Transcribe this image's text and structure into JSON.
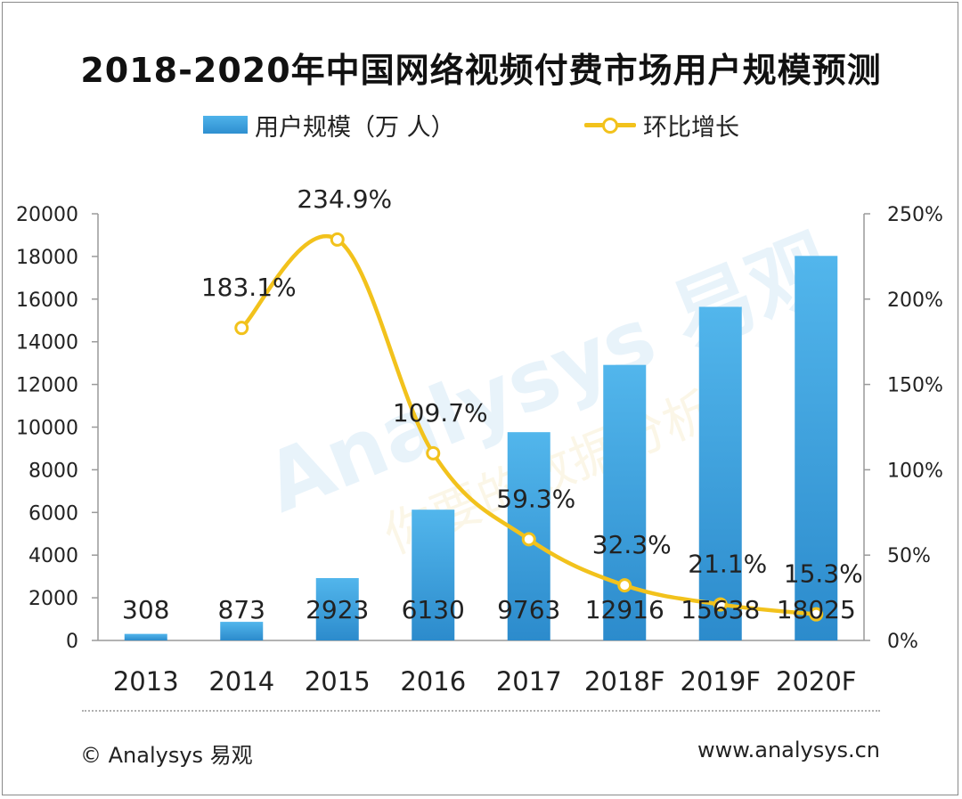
{
  "chart_data": {
    "type": "bar",
    "title": "2018-2020年中国网络视频付费市场用户规模预测",
    "categories": [
      "2013",
      "2014",
      "2015",
      "2016",
      "2017",
      "2018F",
      "2019F",
      "2020F"
    ],
    "series": [
      {
        "name": "用户规模（万 人）",
        "type": "bar",
        "axis": "left",
        "values": [
          308,
          873,
          2923,
          6130,
          9763,
          12916,
          15638,
          18025
        ],
        "labels": [
          "308",
          "873",
          "2923",
          "6130",
          "9763",
          "12916",
          "15638",
          "18025"
        ]
      },
      {
        "name": "环比增长",
        "type": "line",
        "axis": "right",
        "values": [
          null,
          183.1,
          234.9,
          109.7,
          59.3,
          32.3,
          21.1,
          15.3
        ],
        "labels": [
          null,
          "183.1%",
          "234.9%",
          "109.7%",
          "59.3%",
          "32.3%",
          "21.1%",
          "15.3%"
        ]
      }
    ],
    "y_left": {
      "range": [
        0,
        20000
      ],
      "ticks": [
        "0",
        "2000",
        "4000",
        "6000",
        "8000",
        "10000",
        "12000",
        "14000",
        "16000",
        "18000",
        "20000"
      ]
    },
    "y_right": {
      "range": [
        0,
        250
      ],
      "ticks": [
        "0%",
        "50%",
        "100%",
        "150%",
        "200%",
        "250%"
      ]
    },
    "legend_position": "top"
  },
  "legend": {
    "bar_label": "用户规模（万 人）",
    "line_label": "环比增长"
  },
  "footer": {
    "source": "© Analysys 易观",
    "url": "www.analysys.cn"
  },
  "watermark": {
    "text_en": "Analysys 易观",
    "text_cn": "你要的数据分析"
  },
  "colors": {
    "bar_top": "#4fb3ea",
    "bar_bottom": "#2e8fd0",
    "line": "#f2c21c",
    "axis": "#9a9a9a"
  }
}
